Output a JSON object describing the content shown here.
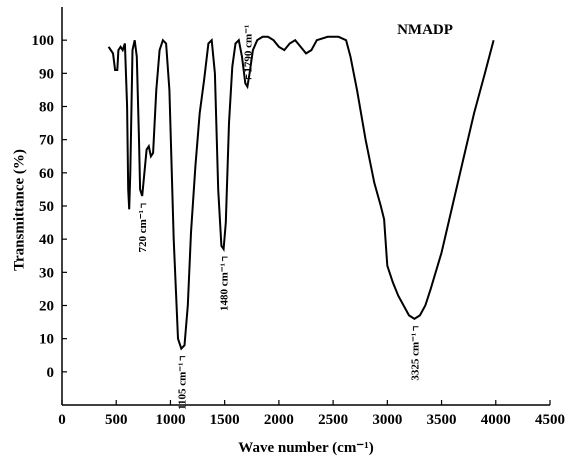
{
  "chart_data": {
    "type": "line",
    "series_label": "NMADP",
    "xlabel": "Wave number (cm⁻¹)",
    "ylabel": "Transmittance (%)",
    "xlim": [
      0,
      4500
    ],
    "xticks": [
      0,
      500,
      1000,
      1500,
      2000,
      2500,
      3000,
      3500,
      4000,
      4500
    ],
    "ylim": [
      -10,
      110
    ],
    "yticks": [
      0,
      10,
      20,
      30,
      40,
      50,
      60,
      70,
      80,
      90,
      100
    ],
    "x": [
      430,
      470,
      490,
      510,
      520,
      540,
      560,
      580,
      600,
      610,
      620,
      630,
      650,
      670,
      690,
      710,
      720,
      740,
      760,
      780,
      800,
      820,
      840,
      870,
      900,
      930,
      960,
      990,
      1030,
      1070,
      1100,
      1130,
      1160,
      1190,
      1230,
      1270,
      1310,
      1350,
      1380,
      1410,
      1440,
      1470,
      1490,
      1510,
      1540,
      1570,
      1600,
      1630,
      1660,
      1690,
      1710,
      1730,
      1760,
      1800,
      1850,
      1900,
      1950,
      2000,
      2050,
      2100,
      2150,
      2200,
      2250,
      2300,
      2350,
      2450,
      2550,
      2620,
      2660,
      2720,
      2800,
      2880,
      2940,
      2970,
      3000,
      3050,
      3100,
      3150,
      3200,
      3250,
      3300,
      3350,
      3400,
      3500,
      3600,
      3700,
      3800,
      3900,
      3980
    ],
    "series": [
      {
        "name": "NMADP",
        "color": "#000000",
        "values": [
          98,
          96,
          91,
          91,
          97,
          98,
          97,
          99,
          80,
          55,
          49,
          60,
          97,
          100,
          95,
          70,
          55,
          53,
          60,
          67,
          68,
          65,
          66,
          85,
          97,
          100,
          99,
          85,
          40,
          10,
          7,
          8,
          20,
          42,
          62,
          78,
          88,
          99,
          100,
          90,
          55,
          38,
          37,
          45,
          75,
          92,
          99,
          100,
          95,
          87,
          86,
          90,
          97,
          100,
          101,
          101,
          100,
          98,
          97,
          99,
          100,
          98,
          96,
          97,
          100,
          101,
          101,
          100,
          95,
          85,
          70,
          57,
          50,
          46,
          32,
          27,
          23,
          20,
          17,
          16,
          17,
          20,
          25,
          36,
          50,
          64,
          78,
          90,
          100
        ]
      }
    ],
    "annotations": [
      {
        "text": "720 cm⁻¹",
        "x": 740,
        "y": 53,
        "side": "below"
      },
      {
        "text": "1105 cm⁻¹",
        "x": 1100,
        "y": 7,
        "side": "below"
      },
      {
        "text": "1480 cm⁻¹",
        "x": 1490,
        "y": 37,
        "side": "below"
      },
      {
        "text": "1790 cm⁻¹",
        "x": 1710,
        "y": 86,
        "side": "above"
      },
      {
        "text": "3325 cm⁻¹",
        "x": 3250,
        "y": 16,
        "side": "below"
      }
    ]
  }
}
